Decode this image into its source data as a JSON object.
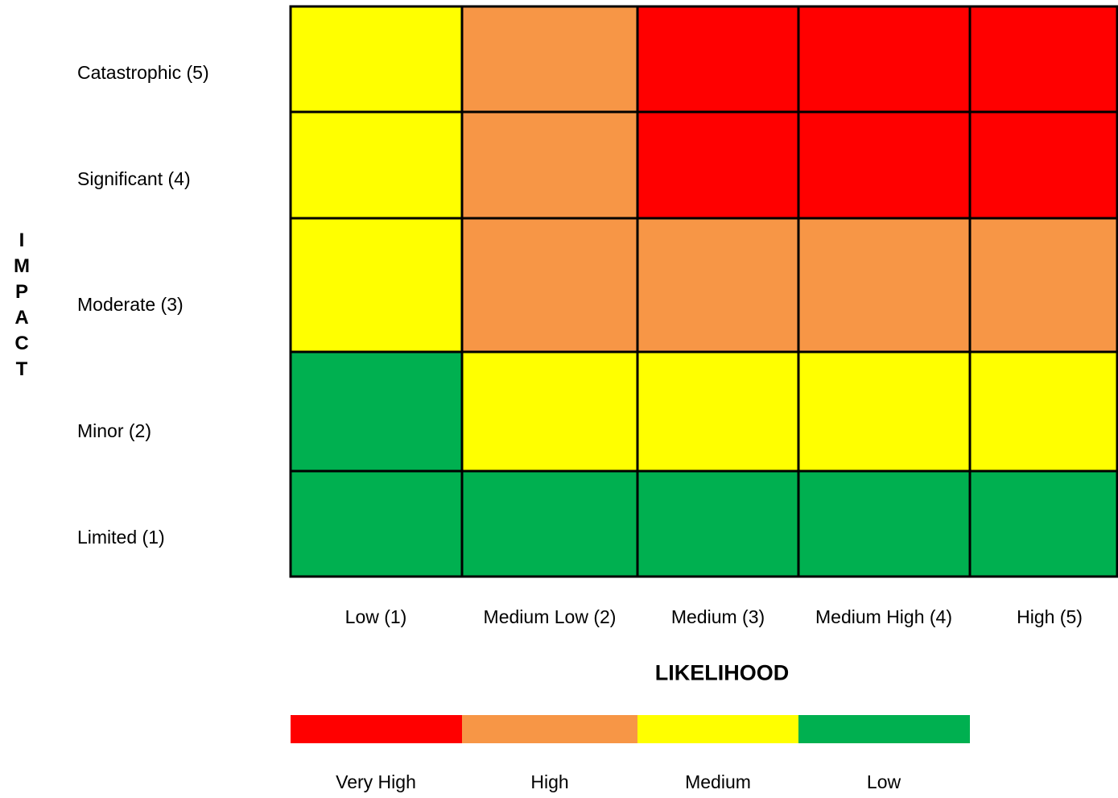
{
  "chart_data": {
    "type": "heatmap",
    "title": "",
    "xlabel": "LIKELIHOOD",
    "ylabel": "IMPACT",
    "ylabel_letters": [
      "I",
      "M",
      "P",
      "A",
      "C",
      "T"
    ],
    "x_categories": [
      "Low (1)",
      "Medium Low (2)",
      "Medium (3)",
      "Medium High (4)",
      "High (5)"
    ],
    "y_categories_top_to_bottom": [
      "Catastrophic (5)",
      "Significant (4)",
      "Moderate (3)",
      "Minor (2)",
      "Limited (1)"
    ],
    "cells_top_to_bottom": [
      [
        "Medium",
        "High",
        "Very High",
        "Very High",
        "Very High"
      ],
      [
        "Medium",
        "High",
        "Very High",
        "Very High",
        "Very High"
      ],
      [
        "Medium",
        "High",
        "High",
        "High",
        "High"
      ],
      [
        "Low",
        "Medium",
        "Medium",
        "Medium",
        "Medium"
      ],
      [
        "Low",
        "Low",
        "Low",
        "Low",
        "Low"
      ]
    ],
    "legend": [
      {
        "label": "Very High",
        "color": "#FF0000"
      },
      {
        "label": "High",
        "color": "#F79646"
      },
      {
        "label": "Medium",
        "color": "#FFFF00"
      },
      {
        "label": "Low",
        "color": "#00B050"
      }
    ]
  }
}
